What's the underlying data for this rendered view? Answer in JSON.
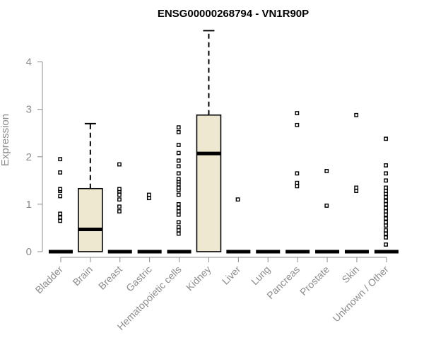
{
  "colors": {
    "box_fill": "#EEE8D0",
    "box_stroke": "#000000",
    "axis": "#8c8c8c",
    "text_muted": "#8c8c8c",
    "title": "#000000"
  },
  "chart_data": {
    "type": "boxplot",
    "title": "ENSG00000268794 - VN1R90P",
    "xlabel": "",
    "ylabel": "Expression",
    "ylim": [
      0,
      4.6
    ],
    "yticks": [
      0,
      1,
      2,
      3,
      4
    ],
    "grid": false,
    "legend": "none",
    "categories": [
      "Bladder",
      "Brain",
      "Breast",
      "Gastric",
      "Hematopoietic cells",
      "Kidney",
      "Liver",
      "Lung",
      "Pancreas",
      "Prostate",
      "Skin",
      "Unknown / Other"
    ],
    "boxes": [
      {
        "q1": 0,
        "median": 0,
        "q3": 0,
        "whisker_low": 0,
        "whisker_high": 0,
        "outliers": [
          0.65,
          0.72,
          0.8,
          1.17,
          1.28,
          1.32,
          1.67,
          1.95
        ]
      },
      {
        "q1": 0,
        "median": 0.47,
        "q3": 1.33,
        "whisker_low": 0,
        "whisker_high": 2.7,
        "outliers": []
      },
      {
        "q1": 0,
        "median": 0,
        "q3": 0,
        "whisker_low": 0,
        "whisker_high": 0,
        "outliers": [
          0.85,
          0.95,
          1.1,
          1.2,
          1.27,
          1.32,
          1.84
        ]
      },
      {
        "q1": 0,
        "median": 0,
        "q3": 0,
        "whisker_low": 0,
        "whisker_high": 0,
        "outliers": [
          1.13,
          1.2
        ]
      },
      {
        "q1": 0,
        "median": 0,
        "q3": 0,
        "whisker_low": 0,
        "whisker_high": 0,
        "outliers": [
          0.38,
          0.45,
          0.52,
          0.62,
          0.78,
          0.85,
          0.92,
          1.0,
          1.2,
          1.3,
          1.35,
          1.42,
          1.48,
          1.53,
          1.65,
          1.8,
          1.92,
          2.08,
          2.25,
          2.52,
          2.62
        ]
      },
      {
        "q1": 0,
        "median": 2.07,
        "q3": 2.88,
        "whisker_low": 0,
        "whisker_high": 4.66,
        "outliers": []
      },
      {
        "q1": 0,
        "median": 0,
        "q3": 0,
        "whisker_low": 0,
        "whisker_high": 0,
        "outliers": [
          1.1
        ]
      },
      {
        "q1": 0,
        "median": 0,
        "q3": 0,
        "whisker_low": 0,
        "whisker_high": 0,
        "outliers": []
      },
      {
        "q1": 0,
        "median": 0,
        "q3": 0,
        "whisker_low": 0,
        "whisker_high": 0,
        "outliers": [
          1.38,
          1.45,
          1.65,
          2.67,
          2.92
        ]
      },
      {
        "q1": 0,
        "median": 0,
        "q3": 0,
        "whisker_low": 0,
        "whisker_high": 0,
        "outliers": [
          0.97,
          1.7
        ]
      },
      {
        "q1": 0,
        "median": 0,
        "q3": 0,
        "whisker_low": 0,
        "whisker_high": 0,
        "outliers": [
          1.28,
          1.35,
          2.88
        ]
      },
      {
        "q1": 0,
        "median": 0,
        "q3": 0,
        "whisker_low": 0,
        "whisker_high": 0,
        "outliers": [
          0.15,
          0.3,
          0.38,
          0.45,
          0.55,
          0.62,
          0.7,
          0.78,
          0.85,
          0.92,
          1.0,
          1.07,
          1.15,
          1.22,
          1.28,
          1.35,
          1.5,
          1.65,
          1.82,
          2.38
        ]
      }
    ]
  }
}
